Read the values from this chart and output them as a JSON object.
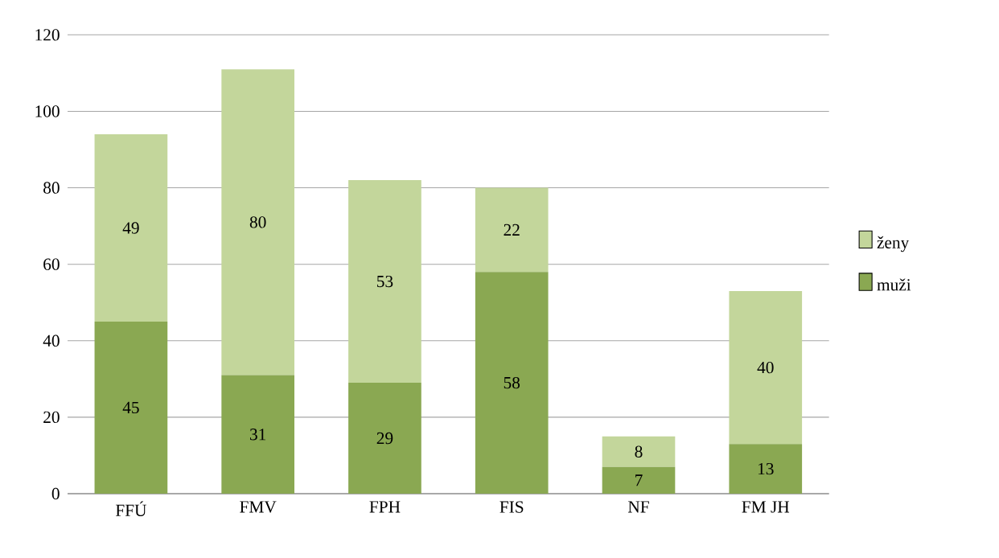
{
  "chart_data": {
    "type": "bar",
    "stacked": true,
    "categories": [
      "FFÚ",
      "FMV",
      "FPH",
      "FIS",
      "NF",
      "FM JH"
    ],
    "series": [
      {
        "name": "muži",
        "color": "#8aa852",
        "values": [
          45,
          31,
          29,
          58,
          7,
          13
        ]
      },
      {
        "name": "ženy",
        "color": "#c3d69b",
        "values": [
          49,
          80,
          53,
          22,
          8,
          40
        ]
      }
    ],
    "ylim": [
      0,
      120
    ],
    "yticks": [
      0,
      20,
      40,
      60,
      80,
      100,
      120
    ],
    "grid": "y",
    "legend": "right",
    "data_labels": true
  }
}
